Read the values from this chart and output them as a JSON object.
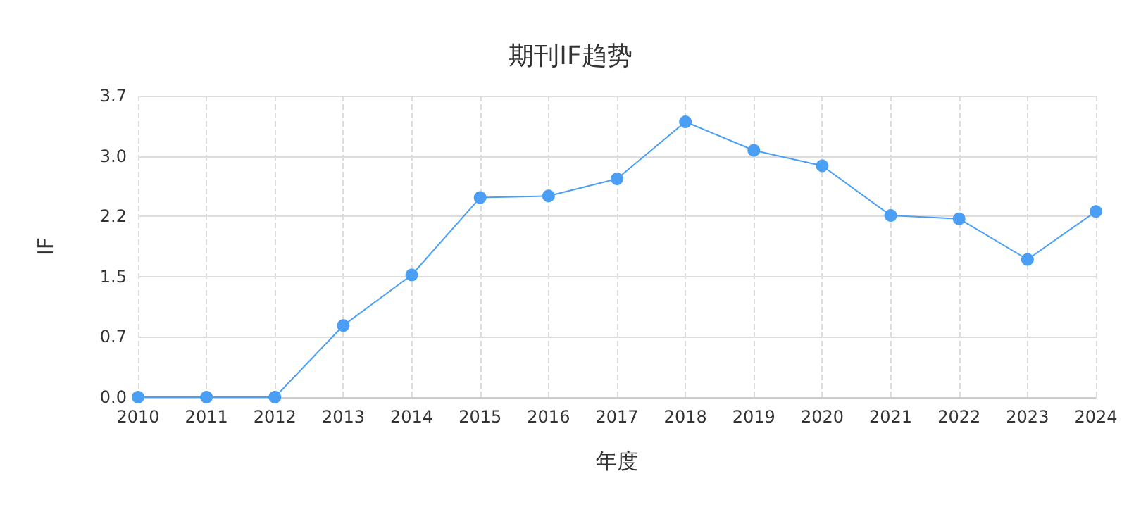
{
  "chart_data": {
    "type": "line",
    "title": "期刊IF趋势",
    "xlabel": "年度",
    "ylabel": "IF",
    "categories": [
      "2010",
      "2011",
      "2012",
      "2013",
      "2014",
      "2015",
      "2016",
      "2017",
      "2018",
      "2019",
      "2020",
      "2021",
      "2022",
      "2023",
      "2024"
    ],
    "series": [
      {
        "color": "#4a9ff5",
        "values": [
          0,
          0,
          0,
          0.88,
          1.5,
          2.45,
          2.47,
          2.68,
          3.38,
          3.03,
          2.84,
          2.23,
          2.19,
          1.69,
          2.28
        ]
      }
    ],
    "ylim": [
      0,
      3.7
    ],
    "yticks": [
      {
        "value": 0,
        "label": "0.0"
      },
      {
        "value": 0.74,
        "label": "0.7"
      },
      {
        "value": 1.48,
        "label": "1.5"
      },
      {
        "value": 2.22,
        "label": "2.2"
      },
      {
        "value": 2.96,
        "label": "3.0"
      },
      {
        "value": 3.7,
        "label": "3.7"
      }
    ],
    "grid": true,
    "marker": "circle",
    "line_style": "solid"
  }
}
